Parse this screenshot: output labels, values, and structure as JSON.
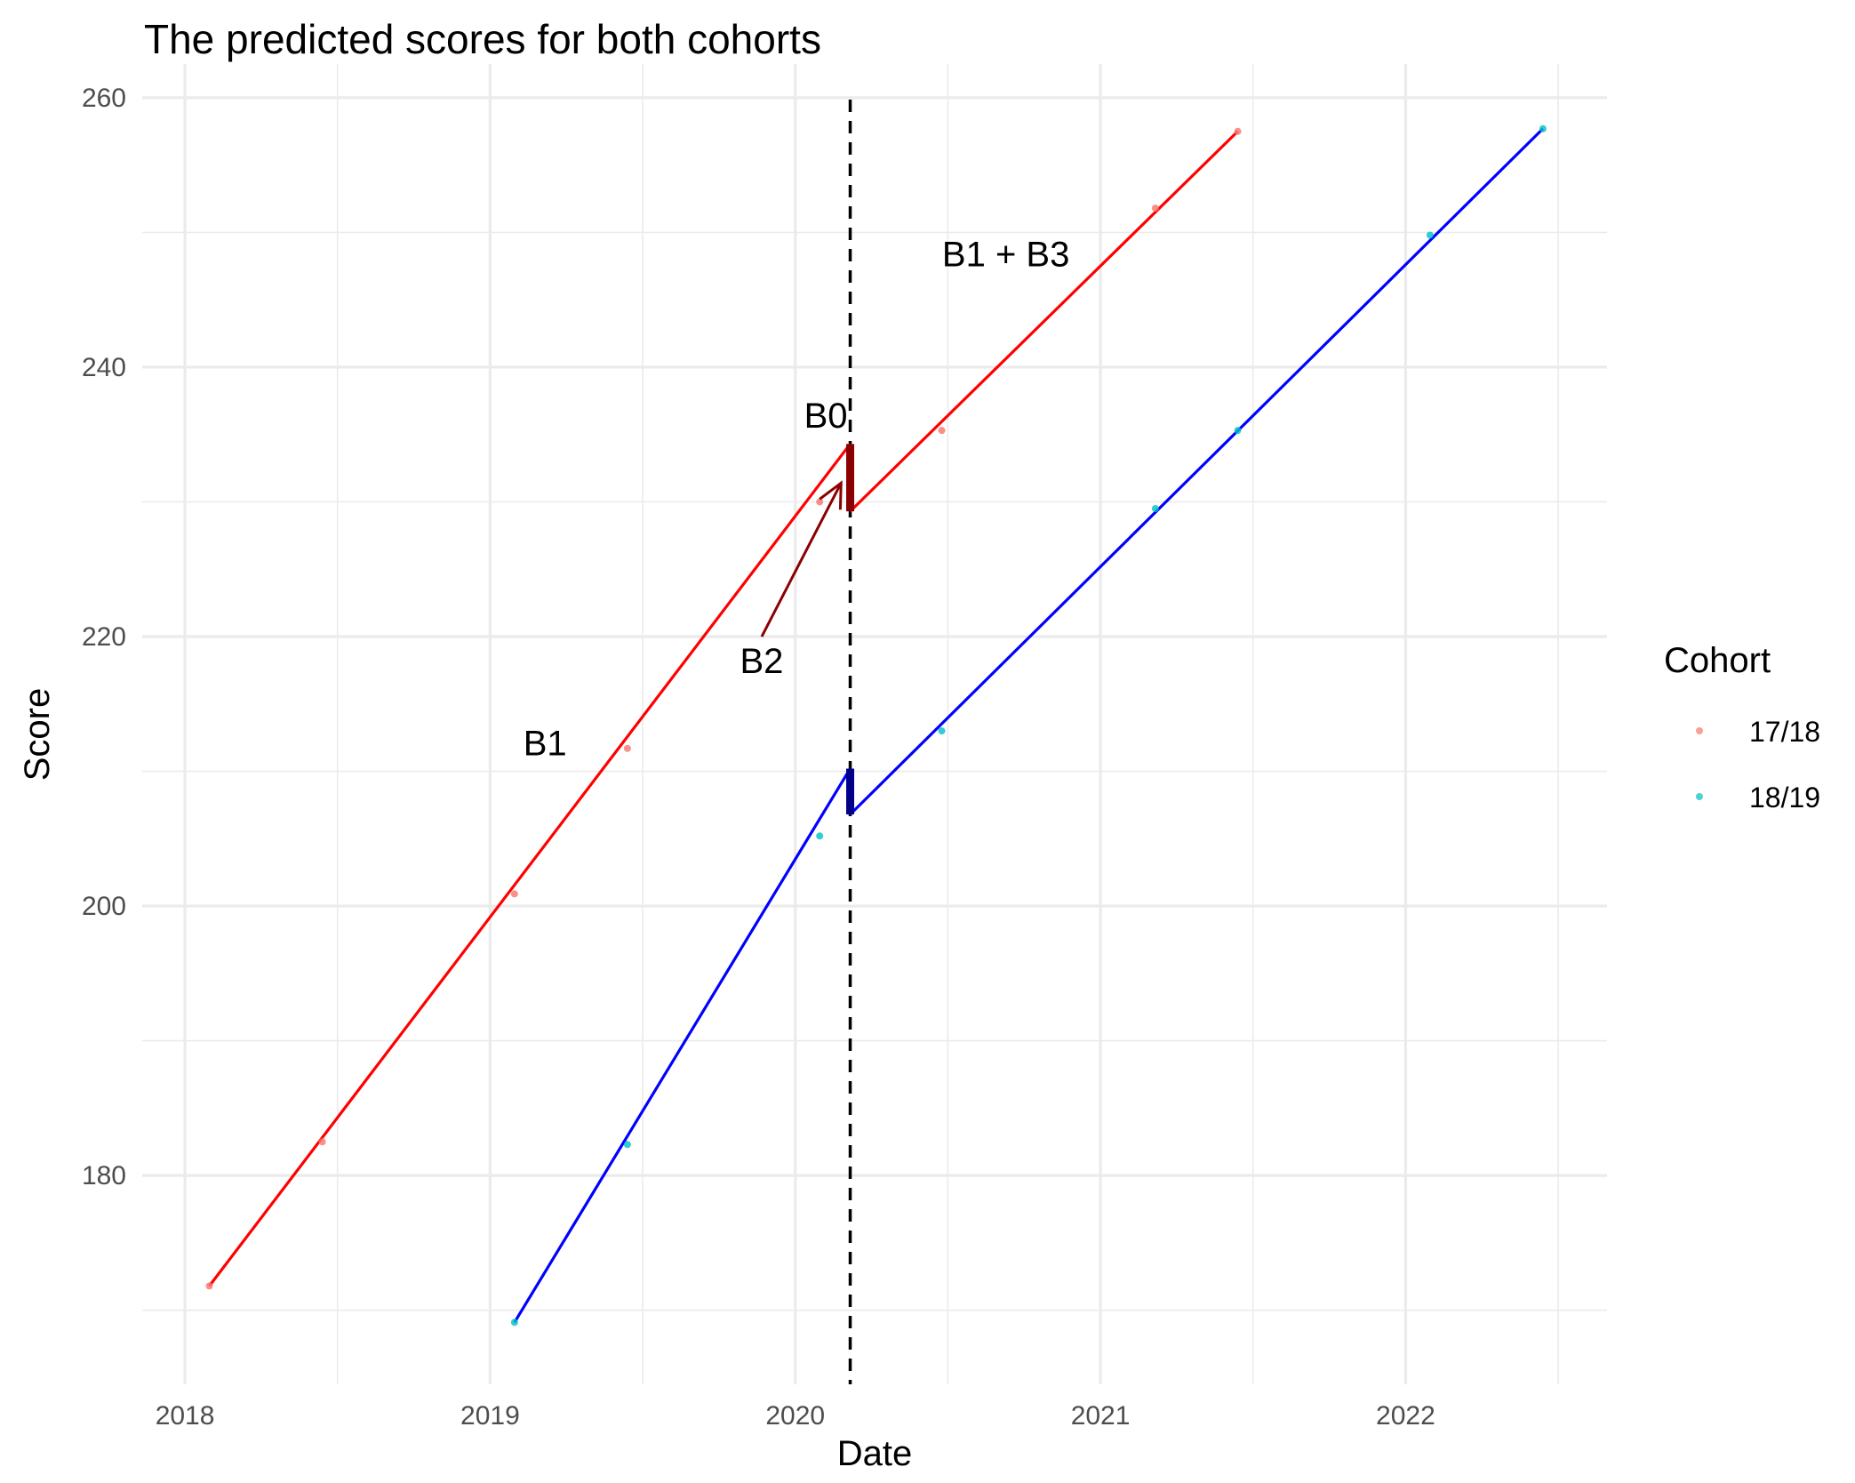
{
  "chart_data": {
    "type": "line",
    "title": "The predicted scores for both cohorts",
    "xlabel": "Date",
    "ylabel": "Score",
    "xlim": [
      2017.86,
      2022.66
    ],
    "ylim": [
      164.5,
      262.5
    ],
    "x_ticks": [
      2018,
      2019,
      2020,
      2021,
      2022
    ],
    "x_tick_labels": [
      "2018",
      "2019",
      "2020",
      "2021",
      "2022"
    ],
    "y_ticks": [
      180,
      200,
      220,
      240,
      260
    ],
    "y_tick_labels": [
      "180",
      "200",
      "220",
      "240",
      "260"
    ],
    "grid": true,
    "vline": {
      "x": 2020.18,
      "style": "dashed",
      "color": "#000000"
    },
    "legend": {
      "title": "Cohort",
      "position": "right",
      "entries": [
        "17/18",
        "18/19"
      ]
    },
    "series": [
      {
        "name": "17/18",
        "point_color": "#F8766D",
        "line_color": "#ff0000",
        "break_color": "#8b0000",
        "points": [
          [
            2018.08,
            171.8
          ],
          [
            2018.45,
            182.5
          ],
          [
            2019.08,
            200.9
          ],
          [
            2019.45,
            211.7
          ],
          [
            2020.08,
            230.0
          ],
          [
            2020.48,
            235.3
          ],
          [
            2021.18,
            251.8
          ],
          [
            2021.45,
            257.5
          ]
        ],
        "pre_line": [
          [
            2018.08,
            171.8
          ],
          [
            2020.18,
            234.3
          ]
        ],
        "post_line": [
          [
            2020.18,
            229.3
          ],
          [
            2021.45,
            257.5
          ]
        ]
      },
      {
        "name": "18/19",
        "point_color": "#00BFC4",
        "line_color": "#0000ff",
        "break_color": "#00008b",
        "points": [
          [
            2019.08,
            169.1
          ],
          [
            2019.45,
            182.3
          ],
          [
            2020.08,
            205.2
          ],
          [
            2020.48,
            213.0
          ],
          [
            2021.18,
            229.5
          ],
          [
            2021.45,
            235.3
          ],
          [
            2022.08,
            249.8
          ],
          [
            2022.45,
            257.7
          ]
        ],
        "pre_line": [
          [
            2019.08,
            169.1
          ],
          [
            2020.18,
            210.2
          ]
        ],
        "post_line": [
          [
            2020.18,
            206.8
          ],
          [
            2022.45,
            257.7
          ]
        ]
      }
    ],
    "annotations": [
      {
        "text": "B0",
        "x": 2020.1,
        "y": 235.5
      },
      {
        "text": "B1",
        "x": 2019.18,
        "y": 211.2
      },
      {
        "text": "B2",
        "x": 2019.89,
        "y": 217.3
      },
      {
        "text": "B1 + B3",
        "x": 2020.69,
        "y": 247.5
      }
    ],
    "arrow": {
      "from": [
        2019.89,
        220.0
      ],
      "to": [
        2020.15,
        231.4
      ],
      "color": "#8b0000"
    }
  }
}
